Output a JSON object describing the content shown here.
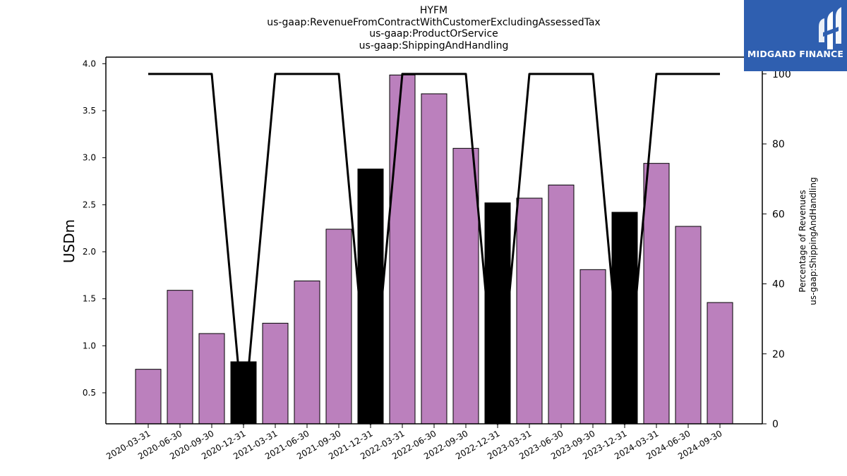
{
  "chart_data": {
    "type": "bar+line",
    "title_lines": [
      "HYFM",
      "us-gaap:RevenueFromContractWithCustomerExcludingAssessedTax",
      "us-gaap:ProductOrService",
      "us-gaap:ShippingAndHandling"
    ],
    "categories": [
      "2020-03-31",
      "2020-06-30",
      "2020-09-30",
      "2020-12-31",
      "2021-03-31",
      "2021-06-30",
      "2021-09-30",
      "2021-12-31",
      "2022-03-31",
      "2022-06-30",
      "2022-09-30",
      "2022-12-31",
      "2023-03-31",
      "2023-06-30",
      "2023-09-30",
      "2023-12-31",
      "2024-03-31",
      "2024-06-30",
      "2024-09-30"
    ],
    "bar_values": [
      0.75,
      1.59,
      1.13,
      0.83,
      1.24,
      1.69,
      2.24,
      2.88,
      3.88,
      3.68,
      3.1,
      2.52,
      2.57,
      2.71,
      1.81,
      2.42,
      2.94,
      2.27,
      1.46
    ],
    "bar_highlight": [
      false,
      false,
      false,
      true,
      false,
      false,
      false,
      true,
      false,
      false,
      false,
      true,
      false,
      false,
      false,
      true,
      false,
      false,
      false
    ],
    "bar_color": "#bb80bd",
    "bar_highlight_color": "#000000",
    "line_values": [
      100,
      100,
      100,
      0,
      100,
      100,
      100,
      0,
      100,
      100,
      100,
      0,
      100,
      100,
      100,
      0,
      100,
      100,
      100
    ],
    "line_color": "#000000",
    "ylabel_left": "USDm",
    "ylabel_right_lines": [
      "Percentage of Revenues",
      "us-gaap:ShippingAndHandling"
    ],
    "ylim_left": [
      0.17,
      4.07
    ],
    "yticks_left": [
      "0.5",
      "1.0",
      "1.5",
      "2.0",
      "2.5",
      "3.0",
      "3.5",
      "4.0"
    ],
    "ylim_right": [
      0,
      104.8
    ],
    "yticks_right": [
      "0",
      "20",
      "40",
      "60",
      "80",
      "100"
    ],
    "grid": false,
    "legend": "none"
  },
  "logo": {
    "text": "MIDGARD FINANCE",
    "background": "#2f5fb0"
  }
}
